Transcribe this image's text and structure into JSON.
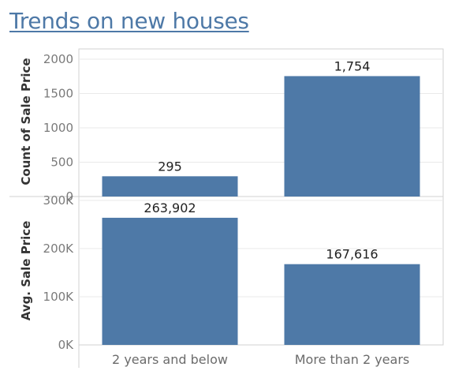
{
  "title": "Trends on new houses",
  "colors": {
    "bar": "#4e79a7",
    "title": "#4e79a7",
    "grid": "#e9e9e9",
    "frame": "#d2d2d2"
  },
  "chart_data": [
    {
      "type": "bar",
      "categories": [
        "2 years and below",
        "More than 2 years"
      ],
      "values": [
        295,
        1754
      ],
      "data_labels": [
        "295",
        "1,754"
      ],
      "ylabel": "Count of Sale Price",
      "ylim": [
        0,
        2150
      ],
      "yticks": [
        0,
        500,
        1000,
        1500,
        2000
      ],
      "ytick_labels": [
        "0",
        "500",
        "1000",
        "1500",
        "2000"
      ],
      "grid": true
    },
    {
      "type": "bar",
      "categories": [
        "2 years and below",
        "More than 2 years"
      ],
      "values": [
        263902,
        167616
      ],
      "data_labels": [
        "263,902",
        "167,616"
      ],
      "ylabel": "Avg. Sale Price",
      "xlabel": "",
      "ylim": [
        0,
        308000
      ],
      "yticks": [
        0,
        100000,
        200000,
        300000
      ],
      "ytick_labels": [
        "0K",
        "100K",
        "200K",
        "300K"
      ],
      "grid": true
    }
  ]
}
